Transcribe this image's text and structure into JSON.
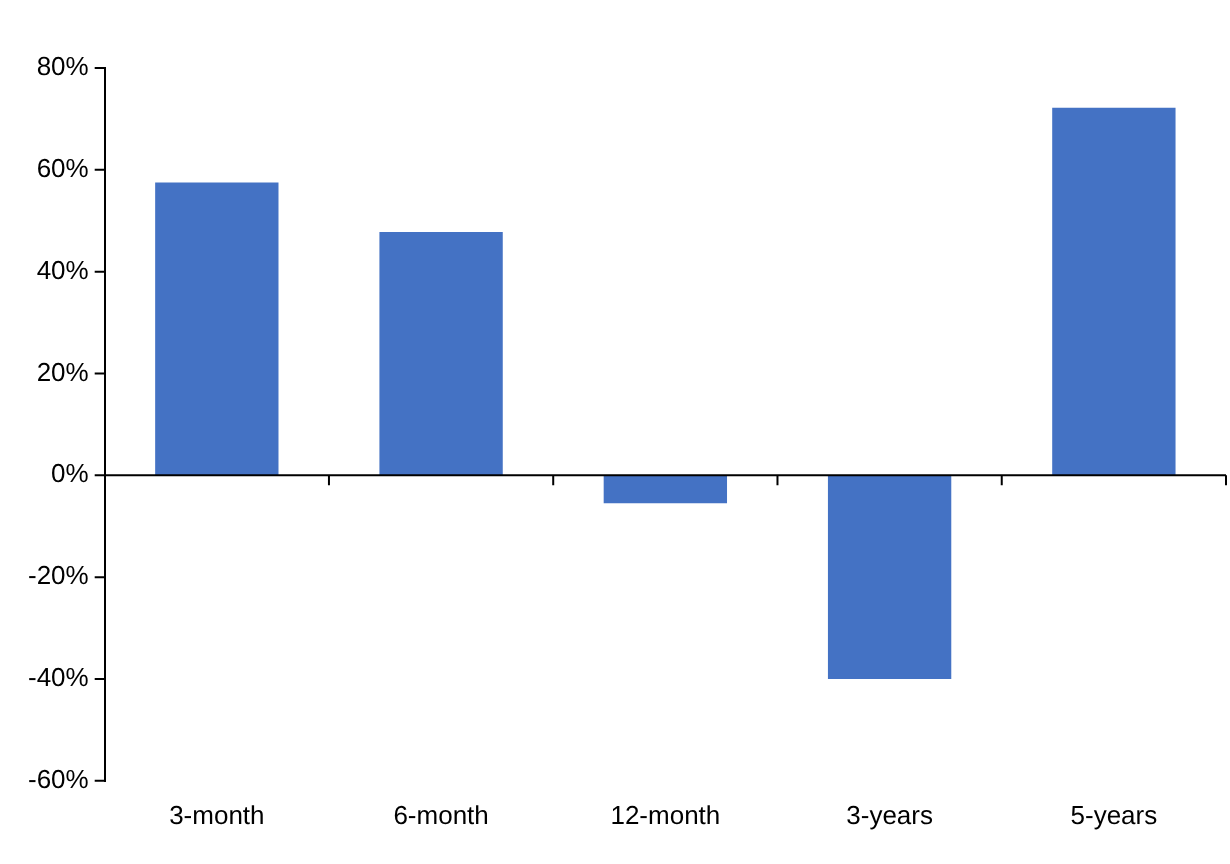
{
  "chart_data": {
    "type": "bar",
    "categories": [
      "3-month",
      "6-month",
      "12-month",
      "3-years",
      "5-years"
    ],
    "values": [
      57.5,
      47.8,
      -5.5,
      -40,
      72.2
    ],
    "color": "#4472c4",
    "ylim": [
      -60,
      80
    ],
    "yticks": [
      {
        "value": -60,
        "label": "-60%"
      },
      {
        "value": -40,
        "label": "-40%"
      },
      {
        "value": -20,
        "label": "-20%"
      },
      {
        "value": 0,
        "label": "0%"
      },
      {
        "value": 20,
        "label": "20%"
      },
      {
        "value": 40,
        "label": "40%"
      },
      {
        "value": 60,
        "label": "60%"
      },
      {
        "value": 80,
        "label": "80%"
      }
    ],
    "legend": false
  }
}
